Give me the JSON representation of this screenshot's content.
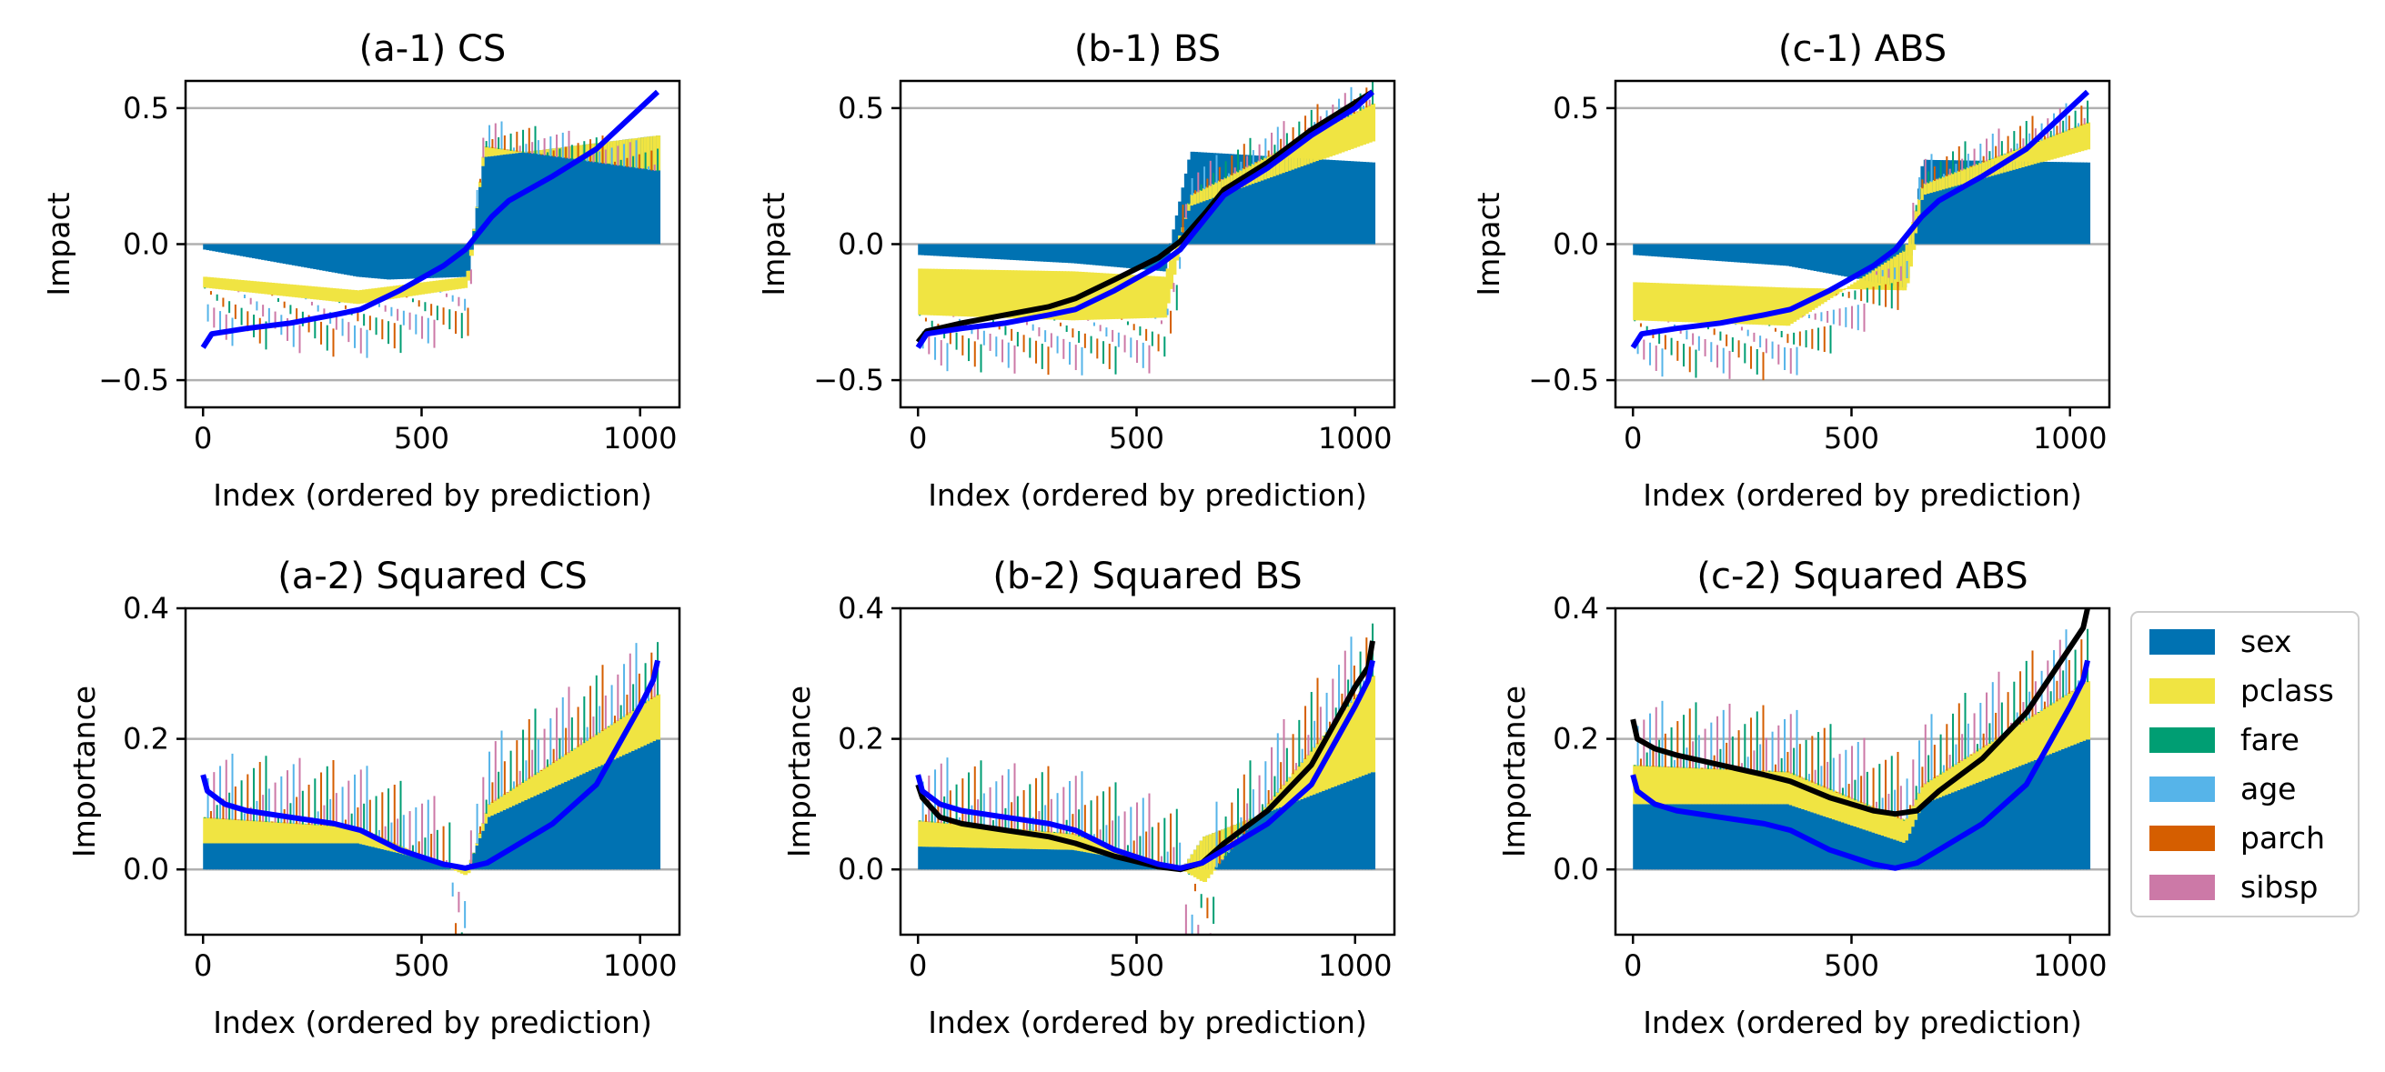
{
  "legend": {
    "items": [
      {
        "label": "sex",
        "color": "#0072B2"
      },
      {
        "label": "pclass",
        "color": "#F0E442"
      },
      {
        "label": "fare",
        "color": "#009E73"
      },
      {
        "label": "age",
        "color": "#56B4E9"
      },
      {
        "label": "parch",
        "color": "#D55E00"
      },
      {
        "label": "sibsp",
        "color": "#CC79A7"
      }
    ]
  },
  "chart_data": [
    {
      "type": "bar",
      "title": "(a-1) CS",
      "xlabel": "Index (ordered by prediction)",
      "ylabel": "Impact",
      "xlim": [
        -40,
        1090
      ],
      "ylim": [
        -0.6,
        0.6
      ],
      "xticks": [
        0,
        500,
        1000
      ],
      "yticks": [
        -0.5,
        0.0,
        0.5
      ],
      "ytick_labels": [
        "−0.5",
        "0.0",
        "0.5"
      ],
      "grid_y": [
        -0.5,
        0.0,
        0.5
      ],
      "stack_profile": "cs_impact",
      "lines": [
        {
          "color": "#0000FF",
          "points": [
            [
              0,
              -0.38
            ],
            [
              20,
              -0.33
            ],
            [
              100,
              -0.31
            ],
            [
              200,
              -0.29
            ],
            [
              300,
              -0.26
            ],
            [
              360,
              -0.24
            ],
            [
              450,
              -0.17
            ],
            [
              550,
              -0.08
            ],
            [
              600,
              -0.02
            ],
            [
              660,
              0.1
            ],
            [
              700,
              0.16
            ],
            [
              800,
              0.25
            ],
            [
              900,
              0.35
            ],
            [
              1000,
              0.5
            ],
            [
              1040,
              0.56
            ]
          ]
        }
      ]
    },
    {
      "type": "bar",
      "title": "(b-1) BS",
      "xlabel": "Index (ordered by prediction)",
      "ylabel": "Impact",
      "xlim": [
        -40,
        1090
      ],
      "ylim": [
        -0.6,
        0.6
      ],
      "xticks": [
        0,
        500,
        1000
      ],
      "yticks": [
        -0.5,
        0.0,
        0.5
      ],
      "ytick_labels": [
        "−0.5",
        "0.0",
        "0.5"
      ],
      "grid_y": [
        -0.5,
        0.0,
        0.5
      ],
      "stack_profile": "bs_impact",
      "lines": [
        {
          "color": "#000000",
          "points": [
            [
              0,
              -0.36
            ],
            [
              20,
              -0.32
            ],
            [
              100,
              -0.29
            ],
            [
              200,
              -0.26
            ],
            [
              300,
              -0.23
            ],
            [
              360,
              -0.2
            ],
            [
              450,
              -0.13
            ],
            [
              550,
              -0.05
            ],
            [
              600,
              0.01
            ],
            [
              660,
              0.12
            ],
            [
              700,
              0.2
            ],
            [
              800,
              0.3
            ],
            [
              900,
              0.42
            ],
            [
              1000,
              0.52
            ],
            [
              1040,
              0.56
            ]
          ]
        },
        {
          "color": "#0000FF",
          "points": [
            [
              0,
              -0.38
            ],
            [
              20,
              -0.33
            ],
            [
              100,
              -0.31
            ],
            [
              200,
              -0.29
            ],
            [
              300,
              -0.26
            ],
            [
              360,
              -0.24
            ],
            [
              450,
              -0.17
            ],
            [
              550,
              -0.08
            ],
            [
              600,
              -0.02
            ],
            [
              660,
              0.1
            ],
            [
              700,
              0.18
            ],
            [
              800,
              0.28
            ],
            [
              900,
              0.4
            ],
            [
              1000,
              0.5
            ],
            [
              1040,
              0.56
            ]
          ]
        }
      ]
    },
    {
      "type": "bar",
      "title": "(c-1) ABS",
      "xlabel": "Index (ordered by prediction)",
      "ylabel": "Impact",
      "xlim": [
        -40,
        1090
      ],
      "ylim": [
        -0.6,
        0.6
      ],
      "xticks": [
        0,
        500,
        1000
      ],
      "yticks": [
        -0.5,
        0.0,
        0.5
      ],
      "ytick_labels": [
        "−0.5",
        "0.0",
        "0.5"
      ],
      "grid_y": [
        -0.5,
        0.0,
        0.5
      ],
      "stack_profile": "abs_impact",
      "lines": [
        {
          "color": "#0000FF",
          "points": [
            [
              0,
              -0.38
            ],
            [
              20,
              -0.33
            ],
            [
              100,
              -0.31
            ],
            [
              200,
              -0.29
            ],
            [
              300,
              -0.26
            ],
            [
              360,
              -0.24
            ],
            [
              450,
              -0.17
            ],
            [
              550,
              -0.08
            ],
            [
              600,
              -0.02
            ],
            [
              660,
              0.1
            ],
            [
              700,
              0.16
            ],
            [
              800,
              0.25
            ],
            [
              900,
              0.35
            ],
            [
              1000,
              0.5
            ],
            [
              1040,
              0.56
            ]
          ]
        }
      ]
    },
    {
      "type": "bar",
      "title": "(a-2) Squared CS",
      "xlabel": "Index (ordered by prediction)",
      "ylabel": "Importance",
      "xlim": [
        -40,
        1090
      ],
      "ylim": [
        -0.1,
        0.4
      ],
      "xticks": [
        0,
        500,
        1000
      ],
      "yticks": [
        0.0,
        0.2,
        0.4
      ],
      "ytick_labels": [
        "0.0",
        "0.2",
        "0.4"
      ],
      "grid_y": [
        0.0,
        0.2
      ],
      "stack_profile": "cs_importance",
      "lines": [
        {
          "color": "#0000FF",
          "points": [
            [
              0,
              0.145
            ],
            [
              10,
              0.12
            ],
            [
              50,
              0.1
            ],
            [
              100,
              0.09
            ],
            [
              200,
              0.08
            ],
            [
              300,
              0.07
            ],
            [
              360,
              0.06
            ],
            [
              450,
              0.03
            ],
            [
              550,
              0.008
            ],
            [
              600,
              0.002
            ],
            [
              650,
              0.01
            ],
            [
              700,
              0.03
            ],
            [
              800,
              0.07
            ],
            [
              900,
              0.13
            ],
            [
              1000,
              0.25
            ],
            [
              1030,
              0.29
            ],
            [
              1040,
              0.32
            ]
          ]
        }
      ]
    },
    {
      "type": "bar",
      "title": "(b-2) Squared BS",
      "xlabel": "Index (ordered by prediction)",
      "ylabel": "Importance",
      "xlim": [
        -40,
        1090
      ],
      "ylim": [
        -0.1,
        0.4
      ],
      "xticks": [
        0,
        500,
        1000
      ],
      "yticks": [
        0.0,
        0.2,
        0.4
      ],
      "ytick_labels": [
        "0.0",
        "0.2",
        "0.4"
      ],
      "grid_y": [
        0.0,
        0.2
      ],
      "stack_profile": "bs_importance",
      "lines": [
        {
          "color": "#000000",
          "points": [
            [
              0,
              0.13
            ],
            [
              10,
              0.11
            ],
            [
              50,
              0.08
            ],
            [
              100,
              0.07
            ],
            [
              200,
              0.06
            ],
            [
              300,
              0.05
            ],
            [
              360,
              0.04
            ],
            [
              450,
              0.02
            ],
            [
              550,
              0.004
            ],
            [
              600,
              0.0
            ],
            [
              650,
              0.01
            ],
            [
              700,
              0.04
            ],
            [
              800,
              0.09
            ],
            [
              900,
              0.16
            ],
            [
              1000,
              0.28
            ],
            [
              1030,
              0.31
            ],
            [
              1040,
              0.35
            ]
          ]
        },
        {
          "color": "#0000FF",
          "points": [
            [
              0,
              0.145
            ],
            [
              10,
              0.12
            ],
            [
              50,
              0.1
            ],
            [
              100,
              0.09
            ],
            [
              200,
              0.08
            ],
            [
              300,
              0.07
            ],
            [
              360,
              0.06
            ],
            [
              450,
              0.03
            ],
            [
              550,
              0.008
            ],
            [
              600,
              0.002
            ],
            [
              650,
              0.01
            ],
            [
              700,
              0.03
            ],
            [
              800,
              0.07
            ],
            [
              900,
              0.13
            ],
            [
              1000,
              0.25
            ],
            [
              1030,
              0.29
            ],
            [
              1040,
              0.32
            ]
          ]
        }
      ]
    },
    {
      "type": "bar",
      "title": "(c-2) Squared ABS",
      "xlabel": "Index (ordered by prediction)",
      "ylabel": "Importance",
      "xlim": [
        -40,
        1090
      ],
      "ylim": [
        -0.1,
        0.4
      ],
      "xticks": [
        0,
        500,
        1000
      ],
      "yticks": [
        0.0,
        0.2,
        0.4
      ],
      "ytick_labels": [
        "0.0",
        "0.2",
        "0.4"
      ],
      "grid_y": [
        0.0,
        0.2
      ],
      "stack_profile": "abs_importance",
      "lines": [
        {
          "color": "#000000",
          "points": [
            [
              0,
              0.23
            ],
            [
              10,
              0.2
            ],
            [
              50,
              0.185
            ],
            [
              100,
              0.175
            ],
            [
              200,
              0.16
            ],
            [
              300,
              0.145
            ],
            [
              360,
              0.135
            ],
            [
              450,
              0.11
            ],
            [
              550,
              0.09
            ],
            [
              600,
              0.085
            ],
            [
              650,
              0.09
            ],
            [
              700,
              0.12
            ],
            [
              800,
              0.17
            ],
            [
              900,
              0.24
            ],
            [
              1000,
              0.34
            ],
            [
              1030,
              0.37
            ],
            [
              1040,
              0.4
            ]
          ]
        },
        {
          "color": "#0000FF",
          "points": [
            [
              0,
              0.145
            ],
            [
              10,
              0.12
            ],
            [
              50,
              0.1
            ],
            [
              100,
              0.09
            ],
            [
              200,
              0.08
            ],
            [
              300,
              0.07
            ],
            [
              360,
              0.06
            ],
            [
              450,
              0.03
            ],
            [
              550,
              0.008
            ],
            [
              600,
              0.002
            ],
            [
              650,
              0.01
            ],
            [
              700,
              0.03
            ],
            [
              800,
              0.07
            ],
            [
              900,
              0.13
            ],
            [
              1000,
              0.25
            ],
            [
              1030,
              0.29
            ],
            [
              1040,
              0.32
            ]
          ]
        }
      ]
    }
  ]
}
